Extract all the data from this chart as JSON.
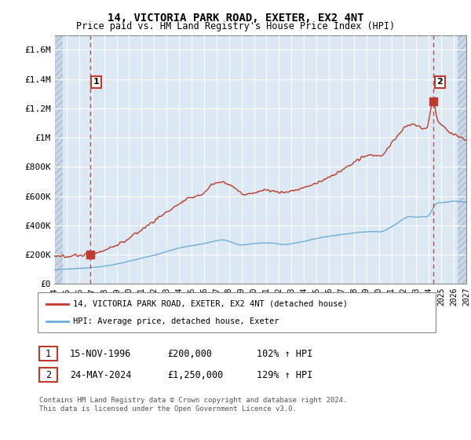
{
  "title": "14, VICTORIA PARK ROAD, EXETER, EX2 4NT",
  "subtitle": "Price paid vs. HM Land Registry's House Price Index (HPI)",
  "footer": "Contains HM Land Registry data © Crown copyright and database right 2024.\nThis data is licensed under the Open Government Licence v3.0.",
  "legend_line1": "14, VICTORIA PARK ROAD, EXETER, EX2 4NT (detached house)",
  "legend_line2": "HPI: Average price, detached house, Exeter",
  "annotation1_label": "1",
  "annotation1_date": "15-NOV-1996",
  "annotation1_price": "£200,000",
  "annotation1_hpi": "102% ↑ HPI",
  "annotation2_label": "2",
  "annotation2_date": "24-MAY-2024",
  "annotation2_price": "£1,250,000",
  "annotation2_hpi": "129% ↑ HPI",
  "hpi_color": "#6baed6",
  "price_color": "#c0392b",
  "chart_bg_color": "#dce9f5",
  "hatch_bg_color": "#c8d8e8",
  "grid_color": "#ffffff",
  "ylim": [
    0,
    1700000
  ],
  "xlim_start": 1994,
  "xlim_end": 2027,
  "data_start": 1994.5,
  "data_end": 2026.5,
  "point1_x": 1996.88,
  "point1_y": 200000,
  "point2_x": 2024.39,
  "point2_y": 1250000,
  "yticks": [
    0,
    200000,
    400000,
    600000,
    800000,
    1000000,
    1200000,
    1400000,
    1600000
  ],
  "ytick_labels": [
    "£0",
    "£200K",
    "£400K",
    "£600K",
    "£800K",
    "£1M",
    "£1.2M",
    "£1.4M",
    "£1.6M"
  ],
  "xticks": [
    1994,
    1995,
    1996,
    1997,
    1998,
    1999,
    2000,
    2001,
    2002,
    2003,
    2004,
    2005,
    2006,
    2007,
    2008,
    2009,
    2010,
    2011,
    2012,
    2013,
    2014,
    2015,
    2016,
    2017,
    2018,
    2019,
    2020,
    2021,
    2022,
    2023,
    2024,
    2025,
    2026,
    2027
  ]
}
